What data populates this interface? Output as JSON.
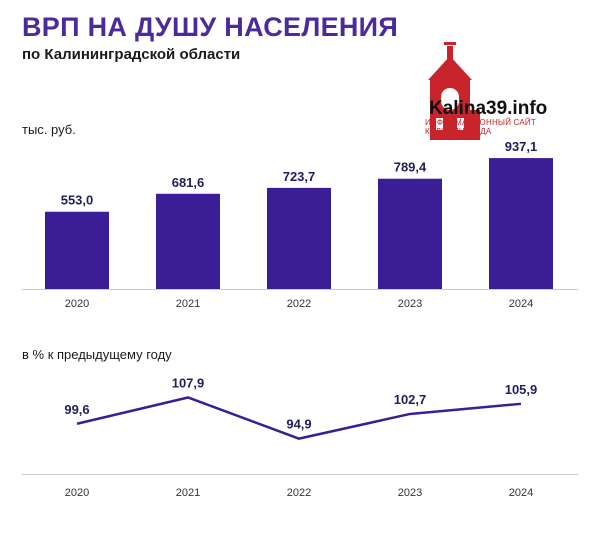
{
  "header": {
    "title": "ВРП НА ДУШУ НАСЕЛЕНИЯ",
    "subtitle": "по Калининградской области"
  },
  "logo": {
    "text": "Kalina39.info",
    "tagline_line1": "ИНФОРМАЦИОННЫЙ САЙТ",
    "tagline_line2": "КАЛИНИНГРАДА"
  },
  "colors": {
    "bar": "#3b1d96",
    "line": "#3b1d96",
    "title": "#4b2a9b",
    "logo_red": "#c8242b"
  },
  "chart_data": [
    {
      "type": "bar",
      "ylabel": "тыс. руб.",
      "categories": [
        "2020",
        "2021",
        "2022",
        "2023",
        "2024"
      ],
      "values": [
        553.0,
        681.6,
        723.7,
        789.4,
        937.1
      ],
      "value_labels": [
        "553,0",
        "681,6",
        "723,7",
        "789,4",
        "937,1"
      ],
      "ylim": [
        0,
        1000
      ],
      "grid": false
    },
    {
      "type": "line",
      "ylabel": "в % к предыдущему году",
      "categories": [
        "2020",
        "2021",
        "2022",
        "2023",
        "2024"
      ],
      "values": [
        99.6,
        107.9,
        94.9,
        102.7,
        105.9
      ],
      "value_labels": [
        "99,6",
        "107,9",
        "94,9",
        "102,7",
        "105,9"
      ],
      "ylim": [
        85,
        115
      ],
      "grid": false
    }
  ]
}
